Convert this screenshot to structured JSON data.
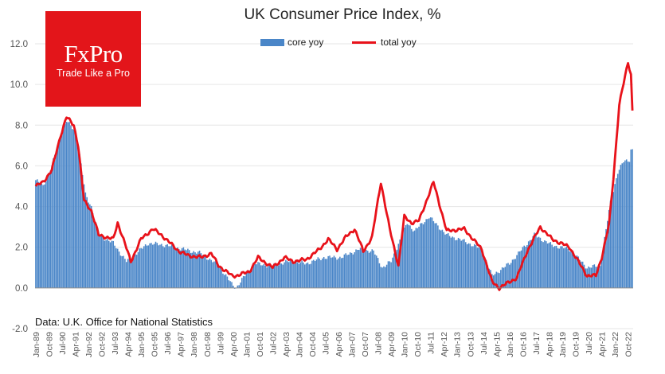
{
  "brand": {
    "name": "FxPro",
    "tagline": "Trade Like a Pro",
    "color": "#e3151a"
  },
  "source_note": "Data: U.K. Office for National Statistics",
  "chart_data": {
    "type": "bar+line",
    "title": "UK Consumer  Price Index, %",
    "xlabel": "",
    "ylabel": "",
    "ylim": [
      -2.0,
      12.0
    ],
    "yticks": [
      "12.0",
      "10.0",
      "8.0",
      "6.0",
      "4.0",
      "2.0",
      "0.0",
      "-2.0"
    ],
    "ytick_values": [
      12,
      10,
      8,
      6,
      4,
      2,
      0,
      -2
    ],
    "legend": [
      {
        "name": "core yoy",
        "kind": "bar",
        "color": "#4a86c8"
      },
      {
        "name": "total yoy",
        "kind": "line",
        "color": "#e8121a"
      }
    ],
    "x_tick_labels": [
      "Jan-89",
      "Oct-89",
      "Jul-90",
      "Apr-91",
      "Jan-92",
      "Oct-92",
      "Jul-93",
      "Apr-94",
      "Jan-95",
      "Oct-95",
      "Jul-96",
      "Apr-97",
      "Jan-98",
      "Oct-98",
      "Jul-99",
      "Apr-00",
      "Jan-01",
      "Oct-01",
      "Jul-02",
      "Apr-03",
      "Jan-04",
      "Oct-04",
      "Jul-05",
      "Apr-06",
      "Jan-07",
      "Oct-07",
      "Jul-08",
      "Apr-09",
      "Jan-10",
      "Oct-10",
      "Jul-11",
      "Apr-12",
      "Jan-13",
      "Oct-13",
      "Jul-14",
      "Apr-15",
      "Jan-16",
      "Oct-16",
      "Jul-17",
      "Apr-18",
      "Jan-19",
      "Oct-19",
      "Jul-20",
      "Apr-21",
      "Jan-22",
      "Oct-22"
    ],
    "start": "Jan-89",
    "end": "Jan-23",
    "series": [
      {
        "name": "core yoy",
        "anchors": [
          [
            "1989-01",
            5.3
          ],
          [
            "1989-06",
            5.0
          ],
          [
            "1989-12",
            6.0
          ],
          [
            "1990-06",
            7.5
          ],
          [
            "1990-10",
            8.2
          ],
          [
            "1991-03",
            7.8
          ],
          [
            "1991-06",
            7.0
          ],
          [
            "1991-11",
            4.6
          ],
          [
            "1992-03",
            4.0
          ],
          [
            "1992-08",
            2.6
          ],
          [
            "1993-06",
            2.2
          ],
          [
            "1994-03",
            1.3
          ],
          [
            "1994-08",
            1.6
          ],
          [
            "1995-06",
            2.2
          ],
          [
            "1996-06",
            2.1
          ],
          [
            "1997-06",
            1.9
          ],
          [
            "1998-06",
            1.7
          ],
          [
            "1999-06",
            1.1
          ],
          [
            "2000-03",
            0.2
          ],
          [
            "2000-06",
            0.0
          ],
          [
            "2001-06",
            1.2
          ],
          [
            "2002-06",
            1.1
          ],
          [
            "2003-06",
            1.3
          ],
          [
            "2004-06",
            1.2
          ],
          [
            "2005-06",
            1.5
          ],
          [
            "2006-06",
            1.5
          ],
          [
            "2007-06",
            1.9
          ],
          [
            "2008-04",
            1.8
          ],
          [
            "2008-10",
            1.0
          ],
          [
            "2009-04",
            1.3
          ],
          [
            "2010-03",
            3.2
          ],
          [
            "2010-08",
            2.8
          ],
          [
            "2011-06",
            3.5
          ],
          [
            "2012-06",
            2.6
          ],
          [
            "2013-06",
            2.3
          ],
          [
            "2014-06",
            1.9
          ],
          [
            "2015-01",
            0.6
          ],
          [
            "2016-01",
            1.2
          ],
          [
            "2017-06",
            2.6
          ],
          [
            "2018-06",
            2.1
          ],
          [
            "2019-06",
            1.9
          ],
          [
            "2020-06",
            1.0
          ],
          [
            "2021-03",
            1.1
          ],
          [
            "2021-10",
            4.2
          ],
          [
            "2022-03",
            5.7
          ],
          [
            "2022-07",
            6.2
          ],
          [
            "2022-11",
            6.3
          ],
          [
            "2022-12",
            6.8
          ]
        ]
      },
      {
        "name": "total yoy",
        "anchors": [
          [
            "1989-01",
            5.0
          ],
          [
            "1989-06",
            5.2
          ],
          [
            "1989-12",
            5.8
          ],
          [
            "1990-06",
            7.5
          ],
          [
            "1990-10",
            8.4
          ],
          [
            "1991-03",
            8.0
          ],
          [
            "1991-06",
            7.0
          ],
          [
            "1991-10",
            4.3
          ],
          [
            "1992-03",
            3.8
          ],
          [
            "1992-08",
            2.6
          ],
          [
            "1993-06",
            2.4
          ],
          [
            "1993-09",
            3.2
          ],
          [
            "1993-12",
            2.6
          ],
          [
            "1994-06",
            1.3
          ],
          [
            "1995-01",
            2.4
          ],
          [
            "1995-09",
            2.9
          ],
          [
            "1996-03",
            2.6
          ],
          [
            "1996-09",
            2.2
          ],
          [
            "1997-03",
            1.8
          ],
          [
            "1997-09",
            1.6
          ],
          [
            "1998-06",
            1.5
          ],
          [
            "1999-01",
            1.7
          ],
          [
            "1999-06",
            1.1
          ],
          [
            "2000-03",
            0.6
          ],
          [
            "2000-06",
            0.6
          ],
          [
            "2001-03",
            0.8
          ],
          [
            "2001-09",
            1.5
          ],
          [
            "2002-01",
            1.3
          ],
          [
            "2002-07",
            1.0
          ],
          [
            "2003-03",
            1.5
          ],
          [
            "2003-09",
            1.3
          ],
          [
            "2004-06",
            1.4
          ],
          [
            "2005-03",
            1.9
          ],
          [
            "2005-09",
            2.4
          ],
          [
            "2006-03",
            1.9
          ],
          [
            "2006-09",
            2.5
          ],
          [
            "2007-03",
            2.9
          ],
          [
            "2007-09",
            1.8
          ],
          [
            "2008-03",
            2.5
          ],
          [
            "2008-09",
            5.2
          ],
          [
            "2009-03",
            2.9
          ],
          [
            "2009-09",
            1.1
          ],
          [
            "2010-01",
            3.5
          ],
          [
            "2010-06",
            3.2
          ],
          [
            "2010-11",
            3.3
          ],
          [
            "2011-09",
            5.2
          ],
          [
            "2012-06",
            2.8
          ],
          [
            "2013-06",
            2.9
          ],
          [
            "2014-06",
            1.9
          ],
          [
            "2015-01",
            0.3
          ],
          [
            "2015-06",
            0.0
          ],
          [
            "2016-01",
            0.3
          ],
          [
            "2016-06",
            0.5
          ],
          [
            "2017-01",
            1.8
          ],
          [
            "2017-10",
            3.0
          ],
          [
            "2018-06",
            2.4
          ],
          [
            "2019-06",
            2.0
          ],
          [
            "2019-12",
            1.3
          ],
          [
            "2020-06",
            0.6
          ],
          [
            "2020-12",
            0.6
          ],
          [
            "2021-04",
            1.5
          ],
          [
            "2021-09",
            3.1
          ],
          [
            "2021-12",
            5.4
          ],
          [
            "2022-04",
            9.0
          ],
          [
            "2022-10",
            11.1
          ],
          [
            "2022-12",
            10.5
          ],
          [
            "2023-01",
            8.7
          ]
        ]
      }
    ]
  }
}
